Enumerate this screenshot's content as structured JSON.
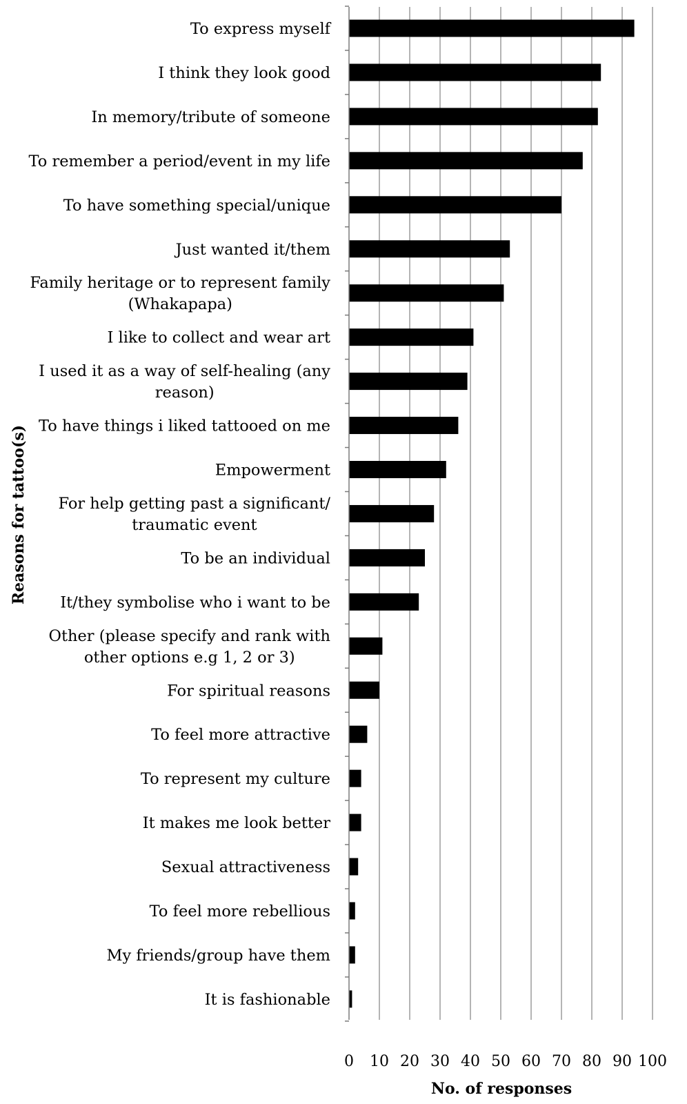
{
  "chart_data": {
    "type": "bar",
    "orientation": "horizontal",
    "title": "",
    "xlabel": "No. of responses",
    "ylabel": "Reasons for tattoo(s)",
    "xlim": [
      0,
      100
    ],
    "x_ticks": [
      "0",
      "10",
      "20",
      "30",
      "40",
      "50",
      "60",
      "70",
      "80",
      "90",
      "100"
    ],
    "grid": "vertical",
    "bar_color": "#000000",
    "categories": [
      [
        "To express myself"
      ],
      [
        "I think they look good"
      ],
      [
        "In memory/tribute of someone"
      ],
      [
        "To remember a period/event in my life"
      ],
      [
        "To have something special/unique"
      ],
      [
        "Just wanted it/them"
      ],
      [
        "Family heritage or to represent family",
        "(Whakapapa)"
      ],
      [
        "I like to collect and wear art"
      ],
      [
        "I used it as a way of self-healing (any",
        "reason)"
      ],
      [
        "To have things i liked tattooed on me"
      ],
      [
        "Empowerment"
      ],
      [
        "For help getting past a significant/",
        "traumatic event"
      ],
      [
        "To be an individual"
      ],
      [
        "It/they symbolise who i want to be"
      ],
      [
        "Other (please specify and rank with",
        "other options e.g 1, 2 or 3)"
      ],
      [
        "For spiritual reasons"
      ],
      [
        "To feel more attractive"
      ],
      [
        "To represent my culture"
      ],
      [
        "It makes me look better"
      ],
      [
        "Sexual attractiveness"
      ],
      [
        "To feel more rebellious"
      ],
      [
        "My friends/group have them"
      ],
      [
        "It is fashionable"
      ]
    ],
    "values": [
      94,
      83,
      82,
      77,
      70,
      53,
      51,
      41,
      39,
      36,
      32,
      28,
      25,
      23,
      11,
      10,
      6,
      4,
      4,
      3,
      2,
      2,
      1
    ]
  }
}
